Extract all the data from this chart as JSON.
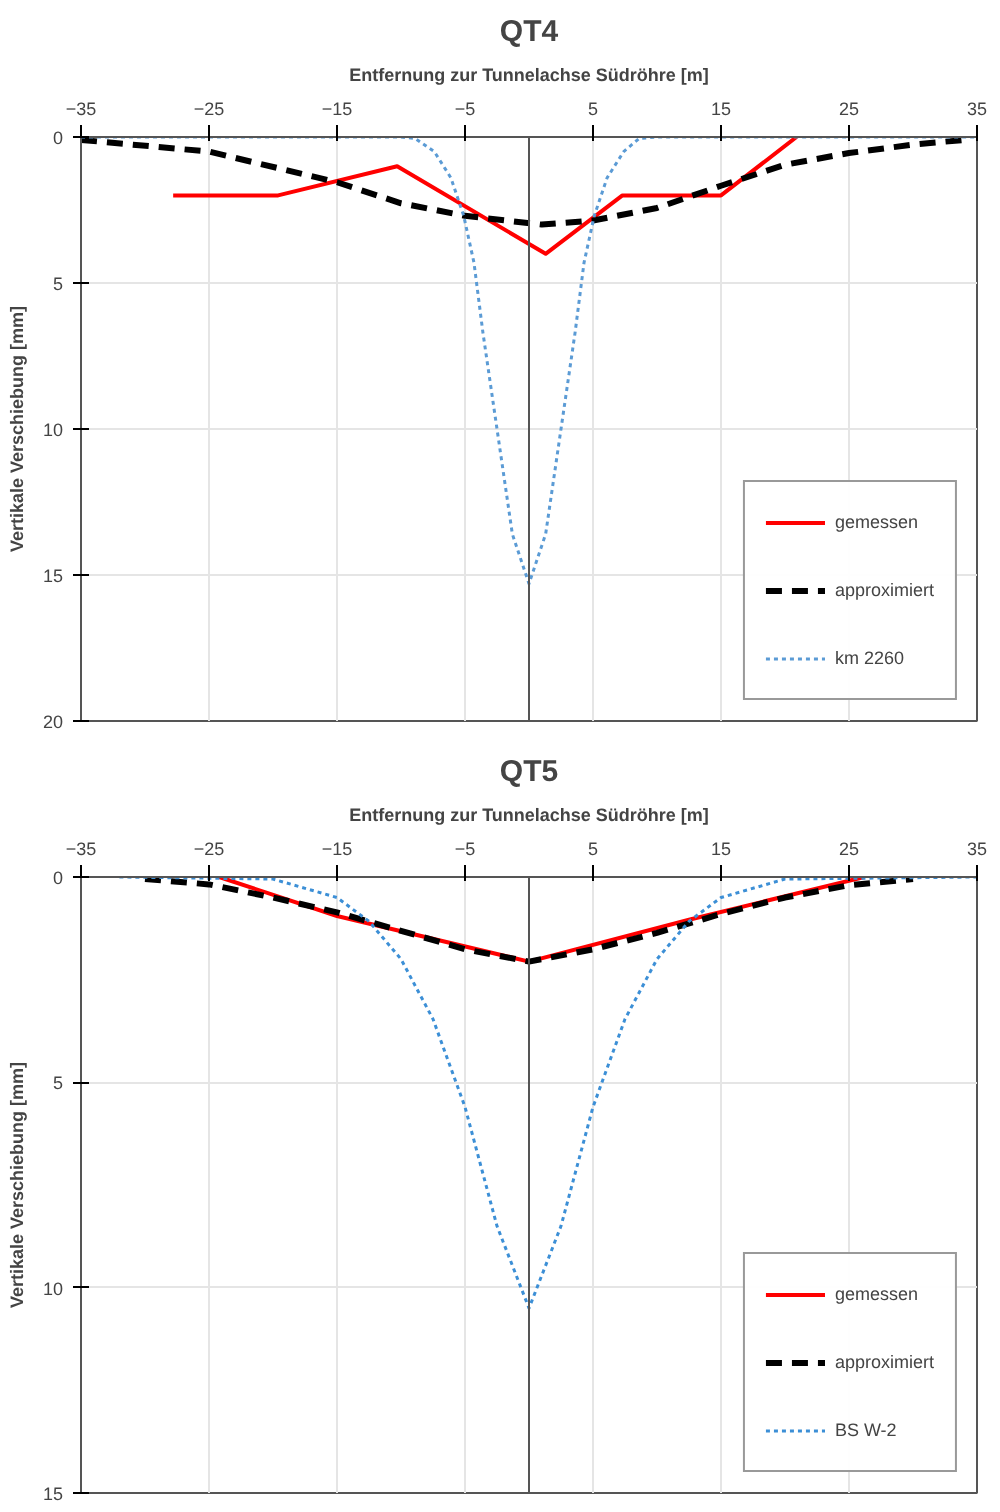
{
  "chart_data": [
    {
      "type": "line",
      "title": "QT4",
      "xlabel": "Entfernung zur Tunnelachse Südröhre [m]",
      "ylabel": "Vertikale Verschiebung [mm]",
      "xlim": [
        -35,
        35
      ],
      "xticks": [
        -35,
        -25,
        -15,
        -5,
        5,
        15,
        25,
        35
      ],
      "ylim": [
        20,
        0
      ],
      "yticks": [
        0,
        5,
        10,
        15,
        20
      ],
      "grid": true,
      "legend": "bottom right",
      "series": [
        {
          "name": "gemessen",
          "color": "#ff0000",
          "line_style": "solid",
          "x": [
            -27.8,
            -19.6,
            -10.3,
            1.3,
            7.3,
            15,
            20.9
          ],
          "values": [
            2,
            2,
            1,
            4,
            2,
            2,
            0
          ]
        },
        {
          "name": "approximiert",
          "color": "#000000",
          "line_style": "dashed",
          "x": [
            -35,
            -25,
            -15,
            -10,
            -5,
            1,
            5,
            10,
            15,
            20,
            25,
            30,
            34
          ],
          "values": [
            0.1,
            0.5,
            1.55,
            2.27,
            2.7,
            3.0,
            2.86,
            2.43,
            1.67,
            0.95,
            0.55,
            0.26,
            0.1
          ]
        },
        {
          "name": "km 2260",
          "color": "#5b9bd5",
          "line_style": "dotted",
          "x": [
            -35,
            -10,
            -8.9,
            -7.4,
            -6.1,
            -5.1,
            -4.3,
            -3.6,
            -2.8,
            -2.0,
            -1.3,
            0,
            1.3,
            2.0,
            2.8,
            3.6,
            4.3,
            5.1,
            6.1,
            7.4,
            8.6,
            10,
            35
          ],
          "values": [
            0,
            0,
            0.05,
            0.5,
            1.4,
            2.7,
            4.3,
            6.7,
            9.1,
            11.5,
            13.6,
            15.3,
            13.6,
            11.5,
            9.1,
            6.7,
            4.3,
            2.7,
            1.4,
            0.5,
            0.05,
            0,
            0
          ]
        }
      ]
    },
    {
      "type": "line",
      "title": "QT5",
      "xlabel": "Entfernung zur Tunnelachse Südröhre [m]",
      "ylabel": "Vertikale Verschiebung [mm]",
      "xlim": [
        -35,
        35
      ],
      "xticks": [
        -35,
        -25,
        -15,
        -5,
        5,
        15,
        25,
        35
      ],
      "ylim": [
        15,
        0
      ],
      "yticks": [
        0,
        5,
        10,
        15
      ],
      "grid": true,
      "legend": "bottom right",
      "series": [
        {
          "name": "gemessen",
          "color": "#ff0000",
          "line_style": "solid",
          "x": [
            -24.2,
            -15,
            0,
            12.5,
            26.2
          ],
          "values": [
            0,
            0.95,
            2.06,
            1.04,
            0
          ]
        },
        {
          "name": "approximiert",
          "color": "#000000",
          "line_style": "dashed",
          "x": [
            -30,
            -25,
            -20,
            -15,
            -10,
            -5,
            0,
            5,
            10,
            15,
            20,
            25,
            30
          ],
          "values": [
            0.05,
            0.18,
            0.5,
            0.86,
            1.31,
            1.76,
            2.06,
            1.76,
            1.36,
            0.9,
            0.5,
            0.2,
            0.05
          ]
        },
        {
          "name": "BS W-2",
          "color": "#3c8fd6",
          "line_style": "dotted",
          "x": [
            -32,
            -20,
            -15,
            -12.5,
            -10,
            -7.5,
            -5,
            -2.5,
            0,
            2.5,
            5,
            7.5,
            10,
            12.5,
            15,
            20,
            35
          ],
          "values": [
            0,
            0.05,
            0.5,
            1.08,
            2.0,
            3.46,
            5.6,
            8.5,
            10.5,
            8.5,
            5.6,
            3.46,
            2.0,
            1.08,
            0.5,
            0.05,
            0
          ]
        }
      ]
    }
  ]
}
